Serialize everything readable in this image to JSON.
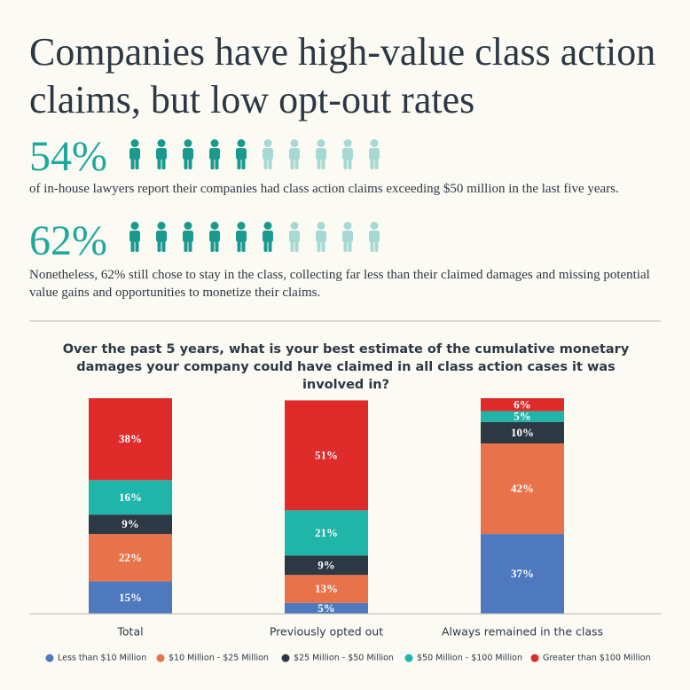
{
  "header": {
    "title": "Companies have high-value class action claims, but low opt-out rates"
  },
  "stats": [
    {
      "figure": "54%",
      "text": "of in-house lawyers report their companies had class action claims exceeding $50 million in the last five years."
    },
    {
      "figure": "62%",
      "text": "Nonetheless, 62% still chose to stay in the class, collecting far less than their claimed damages and missing potential value gains and opportunities to monetize their claims."
    }
  ],
  "chart_data": {
    "type": "stacked_bar",
    "title": "Over the past 5 years, what is your best estimate of the cumulative monetary damages your company could have claimed in all class action cases it was involved in?",
    "categories": [
      "Total",
      "Previously opted out",
      "Always remained in the class"
    ],
    "ylim": [
      0,
      100
    ],
    "legend": "bottom",
    "series": [
      {
        "name": "Less than $10 Million",
        "color": "#4e79bf",
        "values": [
          15,
          5,
          37
        ],
        "value_labels": [
          "15%",
          "5%",
          "37%"
        ]
      },
      {
        "name": "$10 Million - $25 Million",
        "color": "#e8734a",
        "values": [
          22,
          13,
          42
        ],
        "value_labels": [
          "22%",
          "13%",
          "42%"
        ]
      },
      {
        "name": "$25 Million - $50 Million",
        "color": "#2c3844",
        "values": [
          9,
          9,
          10
        ],
        "value_labels": [
          "9%",
          "9%",
          "10%"
        ]
      },
      {
        "name": "$50 Million - $100 Million",
        "color": "#1fb5a8",
        "values": [
          16,
          21,
          5
        ],
        "value_labels": [
          "16%",
          "21%",
          "5%"
        ]
      },
      {
        "name": "Greater than $100 Million",
        "color": "#e02b2b",
        "values": [
          38,
          51,
          6
        ],
        "value_labels": [
          "38%",
          "51%",
          "6%"
        ]
      }
    ]
  }
}
